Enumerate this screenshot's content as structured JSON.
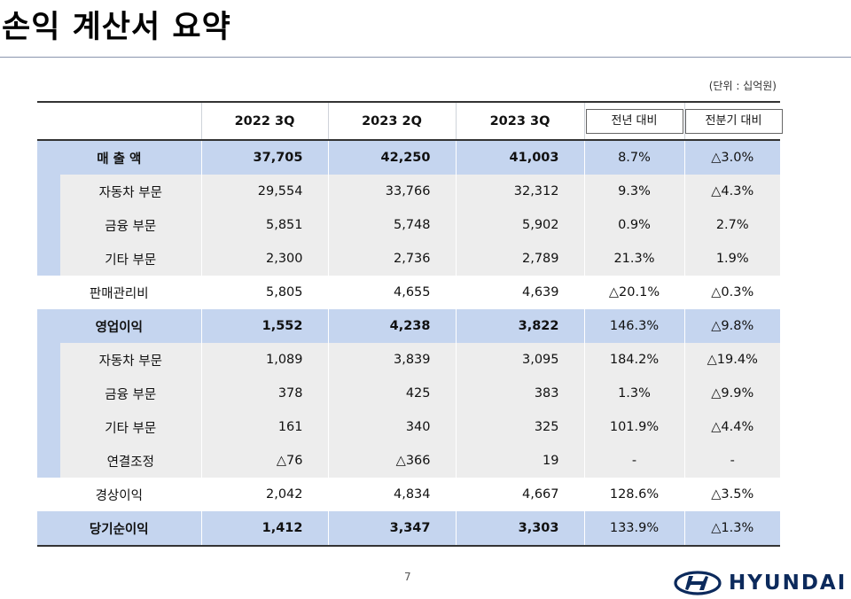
{
  "title": "손익 계산서 요약",
  "unit": "(단위 : 십억원)",
  "page_number": "7",
  "brand": "HYUNDAI",
  "colors": {
    "accent": "#c5d5ef",
    "sub_row": "#ededed",
    "brand": "#0c2a5c"
  },
  "table": {
    "headers": [
      "2022 3Q",
      "2023 2Q",
      "2023 3Q",
      "전년 대비",
      "전분기 대비"
    ],
    "rows": [
      {
        "label": "매 출 액",
        "values": [
          "37,705",
          "42,250",
          "41,003",
          "8.7%",
          "△3.0%"
        ]
      },
      {
        "label": "자동차 부문",
        "values": [
          "29,554",
          "33,766",
          "32,312",
          "9.3%",
          "△4.3%"
        ]
      },
      {
        "label": "금융 부문",
        "values": [
          "5,851",
          "5,748",
          "5,902",
          "0.9%",
          "2.7%"
        ]
      },
      {
        "label": "기타 부문",
        "values": [
          "2,300",
          "2,736",
          "2,789",
          "21.3%",
          "1.9%"
        ]
      },
      {
        "label": "판매관리비",
        "values": [
          "5,805",
          "4,655",
          "4,639",
          "△20.1%",
          "△0.3%"
        ]
      },
      {
        "label": "영업이익",
        "values": [
          "1,552",
          "4,238",
          "3,822",
          "146.3%",
          "△9.8%"
        ]
      },
      {
        "label": "자동차 부문",
        "values": [
          "1,089",
          "3,839",
          "3,095",
          "184.2%",
          "△19.4%"
        ]
      },
      {
        "label": "금융 부문",
        "values": [
          "378",
          "425",
          "383",
          "1.3%",
          "△9.9%"
        ]
      },
      {
        "label": "기타 부문",
        "values": [
          "161",
          "340",
          "325",
          "101.9%",
          "△4.4%"
        ]
      },
      {
        "label": "연결조정",
        "values": [
          "△76",
          "△366",
          "19",
          "-",
          "-"
        ]
      },
      {
        "label": "경상이익",
        "values": [
          "2,042",
          "4,834",
          "4,667",
          "128.6%",
          "△3.5%"
        ]
      },
      {
        "label": "당기순이익",
        "values": [
          "1,412",
          "3,347",
          "3,303",
          "133.9%",
          "△1.3%"
        ]
      }
    ]
  }
}
